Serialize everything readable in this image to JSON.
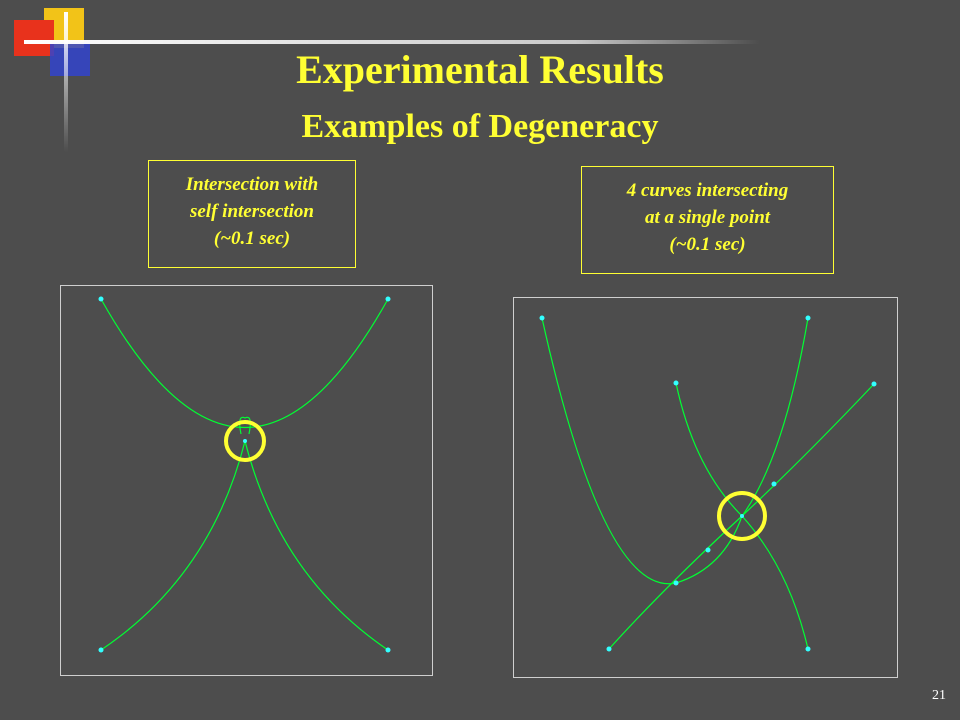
{
  "slide": {
    "title": "Experimental Results",
    "subtitle": "Examples of Degeneracy",
    "page_number": "21"
  },
  "colors": {
    "background": "#4d4d4d",
    "title": "#ffff33",
    "curve": "#00ff33",
    "point": "#33ffff",
    "highlight_circle": "#ffff33"
  },
  "examples": [
    {
      "caption": "Intersection with\nself intersection\n(~0.1 sec)",
      "description_icon": "yellow-circle-highlight"
    },
    {
      "caption": "4 curves intersecting\nat a single point\n(~0.1 sec)",
      "description_icon": "yellow-circle-highlight"
    }
  ]
}
